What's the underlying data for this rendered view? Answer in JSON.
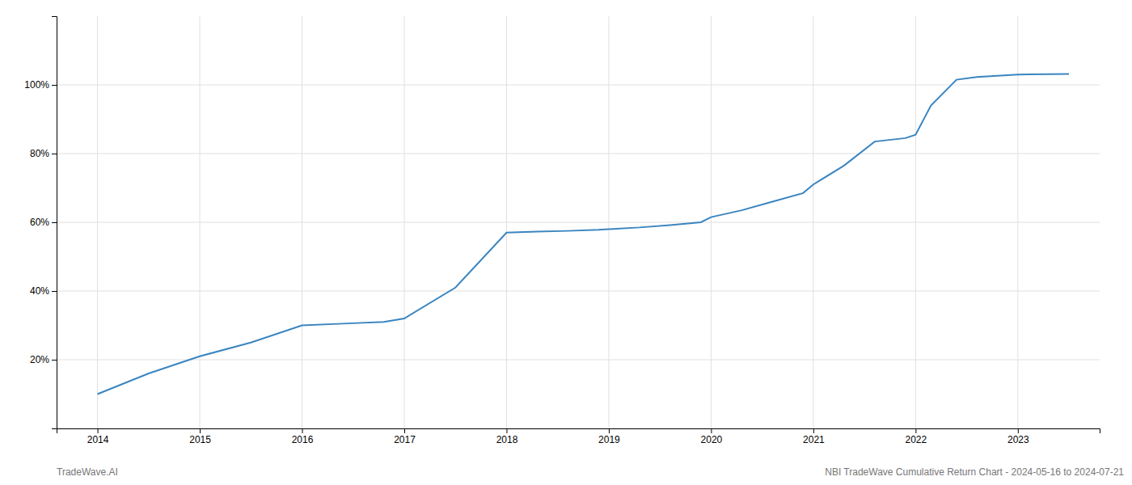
{
  "chart_data": {
    "type": "line",
    "x": [
      2014.0,
      2014.5,
      2015.0,
      2015.5,
      2016.0,
      2016.4,
      2016.8,
      2017.0,
      2017.5,
      2018.0,
      2018.3,
      2018.6,
      2018.9,
      2019.0,
      2019.3,
      2019.6,
      2019.9,
      2020.0,
      2020.3,
      2020.6,
      2020.9,
      2021.0,
      2021.3,
      2021.6,
      2021.9,
      2022.0,
      2022.15,
      2022.4,
      2022.6,
      2022.9,
      2023.0,
      2023.5
    ],
    "values": [
      10,
      16,
      21,
      25,
      30,
      30.5,
      31,
      32,
      41,
      57,
      57.3,
      57.5,
      57.8,
      58.0,
      58.5,
      59.2,
      60.0,
      61.5,
      63.5,
      66.0,
      68.5,
      71.0,
      76.5,
      83.5,
      84.5,
      85.5,
      94.0,
      101.5,
      102.3,
      102.8,
      103.0,
      103.2
    ],
    "color": "#3a85c0",
    "xlim": [
      2013.6,
      2023.8
    ],
    "ylim": [
      0,
      120
    ],
    "xticks": [
      2014,
      2015,
      2016,
      2017,
      2018,
      2019,
      2020,
      2021,
      2022,
      2023
    ],
    "yticks": [
      {
        "value": 20,
        "label": "20%"
      },
      {
        "value": 40,
        "label": "40%"
      },
      {
        "value": 60,
        "label": "60%"
      },
      {
        "value": 80,
        "label": "80%"
      },
      {
        "value": 100,
        "label": "100%"
      }
    ],
    "grid": true,
    "annotations": [
      "TradeWave.AI",
      "NBI TradeWave Cumulative Return Chart - 2024-05-16 to 2024-07-21"
    ]
  }
}
